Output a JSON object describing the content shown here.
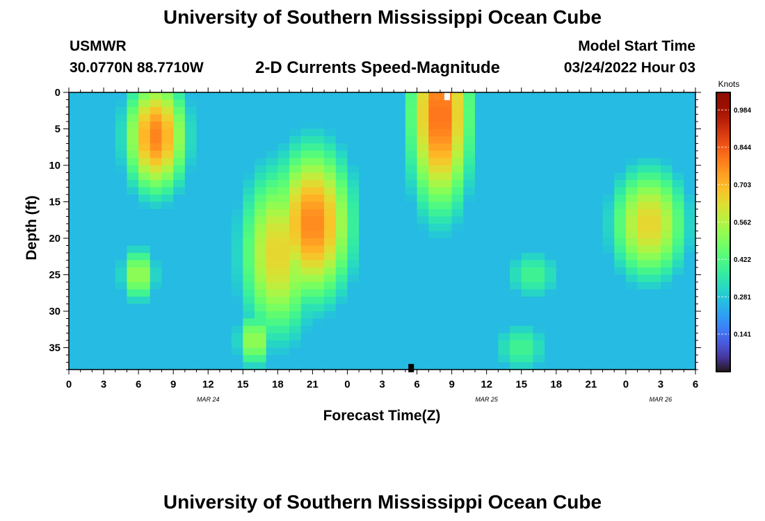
{
  "header": {
    "title": "University of Southern Mississippi Ocean Cube",
    "station": "USMWR",
    "latlon": "30.0770N  88.7710W",
    "subtitle": "2-D Currents Speed-Magnitude",
    "model_start_label": "Model Start Time",
    "model_start_value": "03/24/2022 Hour 03"
  },
  "footer": {
    "title": "University of Southern Mississippi Ocean Cube"
  },
  "chart_data": {
    "type": "heatmap",
    "title": "2-D Currents Speed-Magnitude",
    "xlabel": "Forecast Time(Z)",
    "ylabel": "Depth (ft)",
    "x_tick_labels": [
      "0",
      "3",
      "6",
      "9",
      "12",
      "15",
      "18",
      "21",
      "0",
      "3",
      "6",
      "9",
      "12",
      "15",
      "18",
      "21",
      "0",
      "3",
      "6"
    ],
    "x_range_hours": [
      0,
      54
    ],
    "date_labels": [
      {
        "text": "MAR 24",
        "hour": 12
      },
      {
        "text": "MAR 25",
        "hour": 36
      },
      {
        "text": "MAR 26",
        "hour": 51
      }
    ],
    "y_ticks": [
      0,
      5,
      10,
      15,
      20,
      25,
      30,
      35
    ],
    "ylim": [
      0,
      38
    ],
    "y_inverted": true,
    "colorbar": {
      "label": "Knots",
      "ticks": [
        0.141,
        0.281,
        0.422,
        0.562,
        0.703,
        0.844,
        0.984
      ],
      "range": [
        0.0,
        1.05
      ],
      "colormap": "turbo"
    },
    "grid_cells": {
      "x_step_hours": 1,
      "y_step_ft": 1
    },
    "speed_blobs": [
      {
        "hour": 7.5,
        "depth": 6,
        "speed": 0.68,
        "sx": 2.0,
        "sy": 6
      },
      {
        "hour": 21,
        "depth": 18,
        "speed": 0.68,
        "sx": 2.6,
        "sy": 8
      },
      {
        "hour": 32,
        "depth": 3,
        "speed": 0.72,
        "sx": 2.0,
        "sy": 10
      },
      {
        "hour": 18,
        "depth": 22,
        "speed": 0.55,
        "sx": 2.5,
        "sy": 9
      },
      {
        "hour": 16,
        "depth": 34,
        "speed": 0.45,
        "sx": 1.2,
        "sy": 3
      },
      {
        "hour": 6,
        "depth": 25,
        "speed": 0.45,
        "sx": 1.2,
        "sy": 3
      },
      {
        "hour": 50,
        "depth": 18,
        "speed": 0.55,
        "sx": 2.5,
        "sy": 6
      },
      {
        "hour": 40,
        "depth": 25,
        "speed": 0.3,
        "sx": 2.0,
        "sy": 3
      },
      {
        "hour": 39,
        "depth": 35,
        "speed": 0.3,
        "sx": 2.0,
        "sy": 3
      }
    ],
    "max_markers": [
      {
        "hour": 32.6,
        "depth": 0.5
      },
      {
        "hour": 29.5,
        "depth": 37.8
      }
    ]
  },
  "colors": {
    "background": "#ffffff",
    "frame": "#000000",
    "marker": "#ffffff"
  }
}
